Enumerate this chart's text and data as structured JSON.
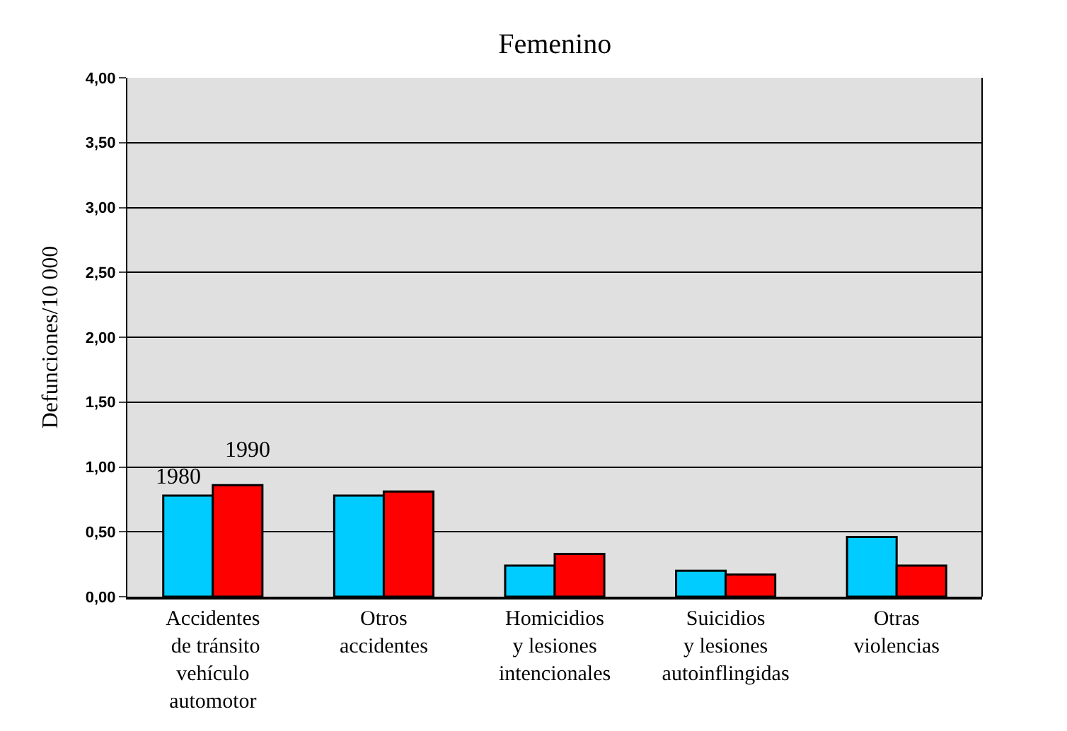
{
  "chart_data": {
    "type": "bar",
    "title": "Femenino",
    "ylabel": "Defunciones/10 000",
    "categories": [
      "Accidentes\n de tránsito\nvehículo\nautomotor",
      "Otros\naccidentes",
      "Homicidios\ny lesiones\nintencionales",
      "Suicidios\ny lesiones\nautoinflingidas",
      "Otras\nviolencias"
    ],
    "series": [
      {
        "name": "1980",
        "color": "#00ccff",
        "values": [
          0.78,
          0.78,
          0.24,
          0.2,
          0.46
        ]
      },
      {
        "name": "1990",
        "color": "#ff0000",
        "values": [
          0.86,
          0.81,
          0.33,
          0.17,
          0.24
        ]
      }
    ],
    "ylim": [
      0,
      4
    ],
    "yticks": [
      {
        "value": 0,
        "label": "0,00"
      },
      {
        "value": 0.5,
        "label": "0,50"
      },
      {
        "value": 1,
        "label": "1,00"
      },
      {
        "value": 1.5,
        "label": "1,50"
      },
      {
        "value": 2,
        "label": "2,00"
      },
      {
        "value": 2.5,
        "label": "2,50"
      },
      {
        "value": 3,
        "label": "3,00"
      },
      {
        "value": 3.5,
        "label": "3,50"
      },
      {
        "value": 4,
        "label": "4,00"
      }
    ],
    "grid": "y",
    "legend": false
  }
}
